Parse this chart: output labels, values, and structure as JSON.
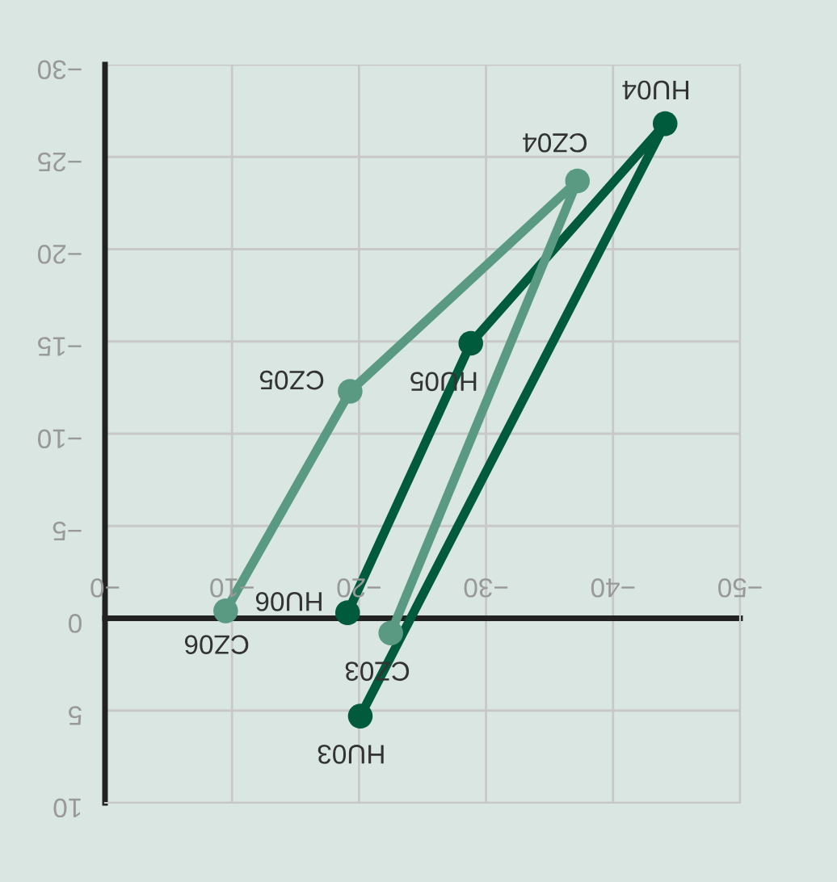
{
  "chart_data": {
    "type": "line",
    "xlim": [
      0,
      -50
    ],
    "ylim": [
      10,
      -30
    ],
    "xticks": [
      {
        "value": 0,
        "label": "−0"
      },
      {
        "value": -10,
        "label": "−10"
      },
      {
        "value": -20,
        "label": "−20"
      },
      {
        "value": -30,
        "label": "−30"
      },
      {
        "value": -40,
        "label": "−40"
      },
      {
        "value": -50,
        "label": "−50"
      }
    ],
    "yticks": [
      {
        "value": -30,
        "label": "−30"
      },
      {
        "value": -25,
        "label": "−25"
      },
      {
        "value": -20,
        "label": "−20"
      },
      {
        "value": -15,
        "label": "−15"
      },
      {
        "value": -10,
        "label": "−10"
      },
      {
        "value": -5,
        "label": "−5"
      },
      0,
      5,
      10
    ],
    "grid": true,
    "marker": "circle",
    "line_style": "solid",
    "legend": false,
    "series": [
      {
        "color": "#005a3c",
        "x": [
          -20.1,
          -44.1,
          -28.8,
          -19.1
        ],
        "values": [
          5.3,
          -26.8,
          -14.9,
          -0.3
        ]
      },
      {
        "color": "#5a9a82",
        "x": [
          -22.5,
          -37.2,
          -19.3,
          -9.5
        ],
        "values": [
          0.8,
          -23.7,
          -12.3,
          -0.4
        ]
      }
    ],
    "annotations": [
      {
        "text": "HU03",
        "x": -20.1,
        "y": 5.3
      },
      {
        "text": "HU04",
        "x": -44.1,
        "y": -26.8
      },
      {
        "text": "HU05",
        "x": -28.8,
        "y": -14.9
      },
      {
        "text": "HU06",
        "x": -19.1,
        "y": -0.3
      },
      {
        "text": "CZ03",
        "x": -22.5,
        "y": 0.8
      },
      {
        "text": "CZ04",
        "x": -37.2,
        "y": -23.7
      },
      {
        "text": "CZ05",
        "x": -19.3,
        "y": -12.3
      },
      {
        "text": "CZ06",
        "x": -9.5,
        "y": -0.4
      }
    ]
  }
}
